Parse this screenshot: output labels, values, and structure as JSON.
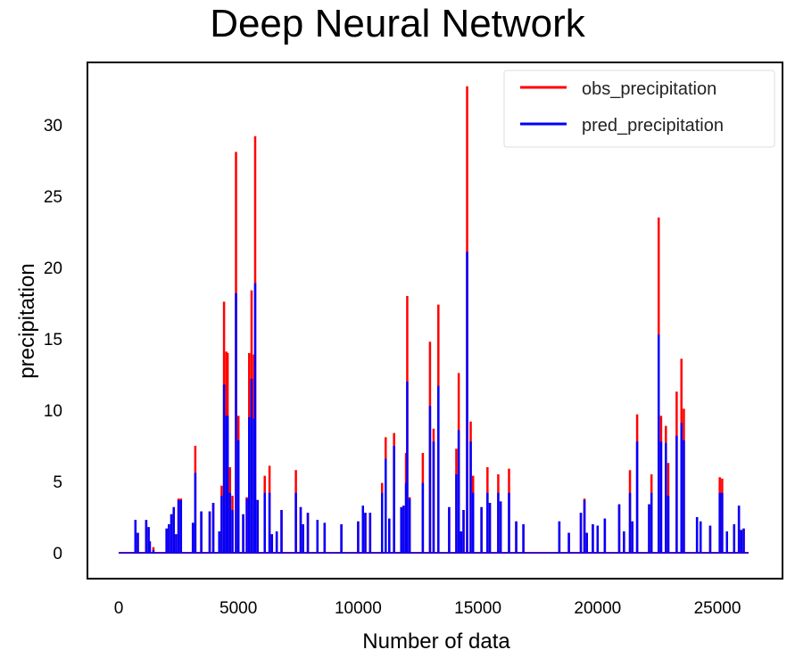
{
  "chart_data": {
    "type": "line",
    "title": "Deep Neural Network",
    "xlabel": "Number of data",
    "ylabel": "precipitation",
    "xlim": [
      0,
      26300
    ],
    "ylim": [
      -1.8,
      34.5
    ],
    "xticks": [
      0,
      5000,
      10000,
      15000,
      20000,
      25000
    ],
    "yticks": [
      0,
      5,
      10,
      15,
      20,
      25,
      30
    ],
    "grid": false,
    "legend_position": "top-right",
    "series": [
      {
        "name": "obs_precipitation",
        "color": "#ff0000"
      },
      {
        "name": "pred_precipitation",
        "color": "#0000ff"
      }
    ],
    "spikes_columns": [
      "x",
      "obs",
      "pred"
    ],
    "spikes": [
      [
        700,
        2.3,
        2.3
      ],
      [
        800,
        1.4,
        1.4
      ],
      [
        1150,
        2.3,
        2.3
      ],
      [
        1250,
        1.8,
        1.8
      ],
      [
        1300,
        0.8,
        0.8
      ],
      [
        1450,
        0.4,
        0.2
      ],
      [
        2000,
        1.7,
        1.7
      ],
      [
        2100,
        2.0,
        2.0
      ],
      [
        2200,
        2.7,
        2.7
      ],
      [
        2300,
        3.2,
        3.2
      ],
      [
        2400,
        1.3,
        1.3
      ],
      [
        2500,
        3.8,
        3.7
      ],
      [
        2600,
        3.8,
        3.7
      ],
      [
        3100,
        2.1,
        2.1
      ],
      [
        3200,
        7.5,
        5.6
      ],
      [
        3450,
        2.9,
        2.9
      ],
      [
        3800,
        2.9,
        2.9
      ],
      [
        3950,
        3.5,
        3.5
      ],
      [
        4200,
        1.5,
        1.5
      ],
      [
        4300,
        4.7,
        4.0
      ],
      [
        4400,
        17.6,
        11.8
      ],
      [
        4500,
        14.1,
        9.6
      ],
      [
        4550,
        14.0,
        9.6
      ],
      [
        4650,
        6.0,
        4.2
      ],
      [
        4750,
        4.0,
        3.0
      ],
      [
        4900,
        28.1,
        18.2
      ],
      [
        5000,
        9.6,
        7.9
      ],
      [
        5200,
        2.7,
        2.7
      ],
      [
        5350,
        3.9,
        3.8
      ],
      [
        5450,
        14.0,
        9.5
      ],
      [
        5550,
        18.4,
        12.2
      ],
      [
        5650,
        13.9,
        9.4
      ],
      [
        5700,
        29.2,
        18.9
      ],
      [
        5800,
        3.7,
        3.7
      ],
      [
        6100,
        5.4,
        4.2
      ],
      [
        6300,
        6.1,
        4.2
      ],
      [
        6400,
        1.3,
        1.3
      ],
      [
        6600,
        1.5,
        1.5
      ],
      [
        6800,
        3.0,
        3.0
      ],
      [
        7400,
        5.8,
        4.2
      ],
      [
        7600,
        3.2,
        3.2
      ],
      [
        7700,
        2.0,
        2.0
      ],
      [
        7900,
        2.8,
        2.8
      ],
      [
        8300,
        2.3,
        2.3
      ],
      [
        8600,
        2.1,
        2.1
      ],
      [
        9300,
        2.0,
        2.0
      ],
      [
        10000,
        2.2,
        2.2
      ],
      [
        10200,
        3.3,
        3.3
      ],
      [
        10300,
        2.8,
        2.8
      ],
      [
        10500,
        2.8,
        2.8
      ],
      [
        11000,
        4.9,
        4.2
      ],
      [
        11150,
        8.1,
        6.6
      ],
      [
        11300,
        2.4,
        2.4
      ],
      [
        11500,
        8.4,
        7.5
      ],
      [
        11800,
        3.2,
        3.2
      ],
      [
        11900,
        3.3,
        3.3
      ],
      [
        12000,
        7.0,
        4.9
      ],
      [
        12050,
        18.0,
        12.0
      ],
      [
        12150,
        3.9,
        3.8
      ],
      [
        12700,
        7.0,
        4.9
      ],
      [
        13000,
        14.8,
        10.3
      ],
      [
        13150,
        8.7,
        7.8
      ],
      [
        13350,
        17.4,
        11.7
      ],
      [
        13800,
        3.2,
        3.2
      ],
      [
        14100,
        7.3,
        5.5
      ],
      [
        14200,
        12.6,
        8.6
      ],
      [
        14300,
        1.5,
        1.5
      ],
      [
        14400,
        3.0,
        3.0
      ],
      [
        14550,
        32.7,
        21.1
      ],
      [
        14700,
        9.2,
        7.8
      ],
      [
        14800,
        5.4,
        4.2
      ],
      [
        15150,
        3.2,
        3.2
      ],
      [
        15400,
        6.0,
        4.2
      ],
      [
        15500,
        3.5,
        3.5
      ],
      [
        15850,
        5.5,
        4.2
      ],
      [
        15950,
        3.6,
        3.6
      ],
      [
        16300,
        5.9,
        4.2
      ],
      [
        16600,
        2.2,
        2.2
      ],
      [
        16900,
        2.0,
        2.0
      ],
      [
        18400,
        2.2,
        2.2
      ],
      [
        18800,
        1.4,
        1.4
      ],
      [
        19300,
        2.8,
        2.8
      ],
      [
        19450,
        3.8,
        3.7
      ],
      [
        19550,
        1.4,
        1.4
      ],
      [
        19800,
        2.0,
        2.0
      ],
      [
        20000,
        1.9,
        1.9
      ],
      [
        20300,
        2.4,
        2.4
      ],
      [
        20900,
        3.4,
        3.4
      ],
      [
        21100,
        1.5,
        1.5
      ],
      [
        21350,
        5.8,
        4.2
      ],
      [
        21450,
        2.2,
        2.2
      ],
      [
        21650,
        9.7,
        7.8
      ],
      [
        22150,
        3.4,
        3.4
      ],
      [
        22250,
        5.5,
        4.2
      ],
      [
        22550,
        23.5,
        15.3
      ],
      [
        22650,
        9.6,
        7.8
      ],
      [
        22850,
        8.9,
        7.7
      ],
      [
        22950,
        6.3,
        4.0
      ],
      [
        23300,
        11.3,
        8.2
      ],
      [
        23500,
        13.6,
        9.1
      ],
      [
        23600,
        10.1,
        7.9
      ],
      [
        24150,
        2.5,
        2.5
      ],
      [
        24300,
        2.2,
        2.2
      ],
      [
        24700,
        1.9,
        1.9
      ],
      [
        25100,
        5.3,
        4.2
      ],
      [
        25200,
        5.2,
        4.2
      ],
      [
        25400,
        1.5,
        1.5
      ],
      [
        25700,
        2.0,
        2.0
      ],
      [
        25900,
        3.3,
        3.3
      ],
      [
        26000,
        1.6,
        1.6
      ],
      [
        26100,
        1.7,
        1.7
      ]
    ]
  }
}
